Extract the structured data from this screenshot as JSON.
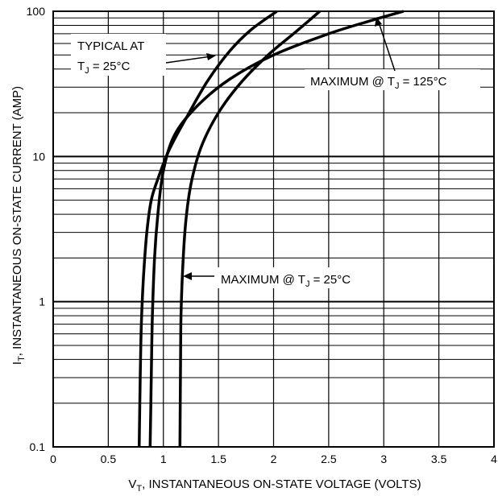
{
  "chart_data": {
    "type": "line",
    "x_axis": {
      "label_main": "V",
      "label_sub": "T",
      "label_rest": ", INSTANTANEOUS ON-STATE VOLTAGE (VOLTS)",
      "range": [
        0,
        4
      ],
      "ticks": [
        0,
        0.5,
        1,
        1.5,
        2,
        2.5,
        3,
        3.5,
        4
      ],
      "tick_labels": [
        "0",
        "0.5",
        "1",
        "1.5",
        "2",
        "2.5",
        "3",
        "3.5",
        "4"
      ]
    },
    "y_axis": {
      "label_main": "I",
      "label_sub": "T",
      "label_rest": ", INSTANTANEOUS ON-STATE CURRENT (AMP)",
      "scale": "log",
      "range": [
        0.1,
        100
      ],
      "ticks": [
        0.1,
        1,
        10,
        100
      ],
      "tick_labels": [
        "0.1",
        "1",
        "10",
        "100"
      ]
    },
    "grid": true,
    "series": [
      {
        "id": "typical-25",
        "x": [
          0.78,
          0.79,
          0.8,
          0.82,
          0.85,
          0.89,
          0.95,
          1.05,
          1.2,
          1.4,
          1.6,
          1.8,
          2.03
        ],
        "y": [
          0.1,
          0.3,
          0.7,
          1.5,
          3,
          5,
          7,
          11,
          18,
          33,
          53,
          75,
          100
        ]
      },
      {
        "id": "max-125",
        "x": [
          0.88,
          0.89,
          0.9,
          0.92,
          0.95,
          1.0,
          1.1,
          1.3,
          1.6,
          2.0,
          2.5,
          2.9,
          3.18
        ],
        "y": [
          0.1,
          0.3,
          0.8,
          2,
          4,
          8,
          14,
          22,
          34,
          50,
          70,
          87,
          100
        ]
      },
      {
        "id": "max-25",
        "x": [
          1.15,
          1.155,
          1.16,
          1.18,
          1.21,
          1.26,
          1.35,
          1.5,
          1.7,
          1.95,
          2.2,
          2.42
        ],
        "y": [
          0.1,
          0.3,
          0.8,
          2,
          4,
          7,
          12,
          20,
          32,
          50,
          72,
          100
        ]
      }
    ],
    "annotations": [
      {
        "id": "typical",
        "line1": "TYPICAL AT",
        "line2_main": "T",
        "line2_sub": "J",
        "line2_rest": " = 25°C"
      },
      {
        "id": "max125",
        "main": "MAXIMUM @ T",
        "sub": "J",
        "rest": " = 125°C"
      },
      {
        "id": "max25",
        "main": "MAXIMUM @ T",
        "sub": "J",
        "rest": " = 25°C"
      }
    ]
  }
}
